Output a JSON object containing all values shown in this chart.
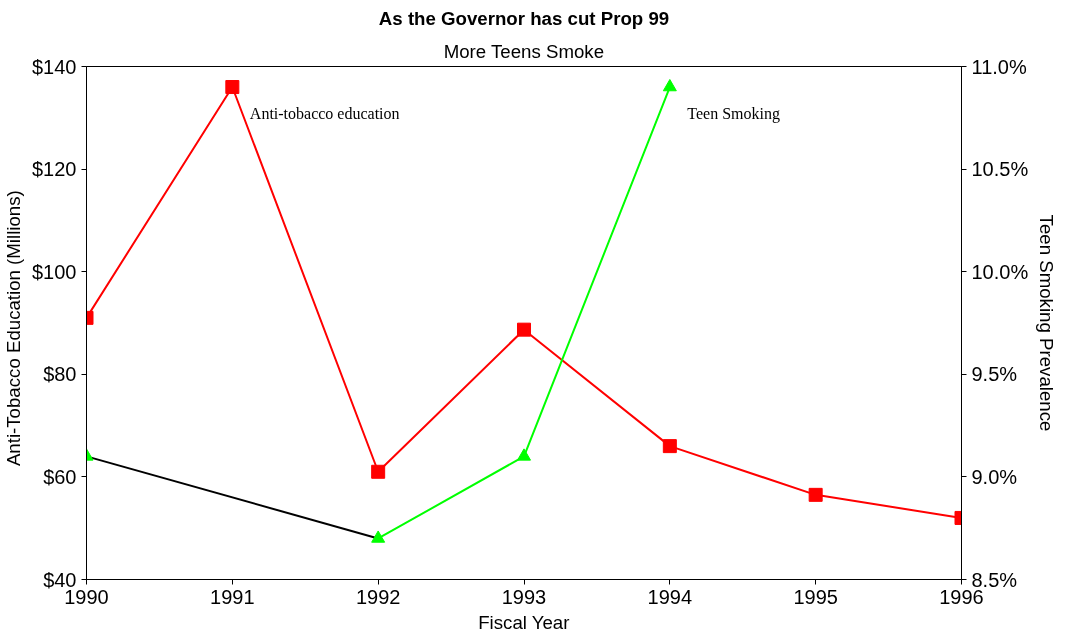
{
  "chart_data": {
    "type": "line",
    "title": "As the Governor has cut Prop 99",
    "subtitle": "More Teens Smoke",
    "xlabel": "Fiscal Year",
    "ylabel": "Anti-Tobacco  Education  (Millions)",
    "y2label": "Teen Smoking Prevalence",
    "x": [
      1990,
      1991,
      1992,
      1993,
      1994,
      1995,
      1996
    ],
    "series": [
      {
        "name": "Anti-tobacco education",
        "color": "#ff0000",
        "marker": "square",
        "values": [
          91,
          136,
          61,
          88.7,
          66,
          56.5,
          52
        ]
      },
      {
        "color": "#000000",
        "marker": "none",
        "x": [
          1990,
          1992
        ],
        "values": [
          9.1,
          8.7
        ],
        "axis": "y2"
      },
      {
        "name": "Teen Smoking",
        "color": "#00ff00",
        "marker": "triangle",
        "values": [
          9.1,
          null,
          8.7,
          9.1,
          10.9,
          null,
          null
        ],
        "axis": "y2"
      }
    ],
    "xlim": [
      1990,
      1996
    ],
    "xticks": [
      1990,
      1991,
      1992,
      1993,
      1994,
      1995,
      1996
    ],
    "ylim": [
      40,
      140
    ],
    "yticks": [
      {
        "value": 40,
        "label": "$40"
      },
      {
        "value": 60,
        "label": "$60"
      },
      {
        "value": 80,
        "label": "$80"
      },
      {
        "value": 100,
        "label": "$100"
      },
      {
        "value": 120,
        "label": "$120"
      },
      {
        "value": 140,
        "label": "$140"
      }
    ],
    "y2lim": [
      8.5,
      11.0
    ],
    "y2ticks": [
      {
        "value": 8.5,
        "label": "8.5%"
      },
      {
        "value": 9.0,
        "label": "9.0%"
      },
      {
        "value": 9.5,
        "label": "9.5%"
      },
      {
        "value": 10.0,
        "label": "10.0%"
      },
      {
        "value": 10.5,
        "label": "10.5%"
      },
      {
        "value": 11.0,
        "label": "11.0%"
      }
    ],
    "grid": false,
    "line_style": "solid"
  }
}
